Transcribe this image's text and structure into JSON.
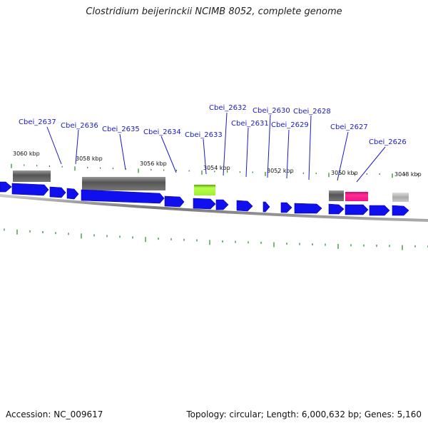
{
  "title": "Clostridium beijerinckii NCIMB 8052, complete genome",
  "footer": {
    "accession": "Accession: NC_009617",
    "summary": "Topology: circular; Length: 6,000,632 bp; Genes: 5,160"
  },
  "colors": {
    "cds": "#1010ee",
    "gene_dark": "#666666",
    "gene_light": "#bbbbbb",
    "gene_green": "#a6f03a",
    "gene_pink": "#f01888",
    "backbone": "#888888",
    "tick": "#228822",
    "label": "#1a1ac8"
  },
  "gene_labels": [
    "Cbei_2637",
    "Cbei_2636",
    "Cbei_2635",
    "Cbei_2634",
    "Cbei_2633",
    "Cbei_2632",
    "Cbei_2631",
    "Cbei_2630",
    "Cbei_2629",
    "Cbei_2628",
    "Cbei_2627",
    "Cbei_2626"
  ],
  "kbp_labels": [
    "3060 kbp",
    "3058 kbp",
    "3056 kbp",
    "3054 kbp",
    "3052 kbp",
    "3050 kbp",
    "3048 kbp"
  ]
}
